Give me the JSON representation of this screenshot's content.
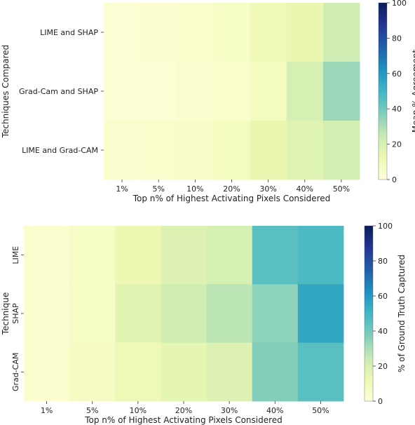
{
  "chart_data": [
    {
      "type": "heatmap",
      "x_categories": [
        "1%",
        "5%",
        "10%",
        "20%",
        "30%",
        "40%",
        "50%"
      ],
      "y_categories": [
        "LIME and SHAP",
        "Grad-Cam and SHAP",
        "LIME and Grad-CAM"
      ],
      "values": [
        [
          2,
          3,
          4,
          6,
          10,
          13,
          22
        ],
        [
          1,
          2,
          3,
          4,
          8,
          20,
          33
        ],
        [
          3,
          4,
          5,
          8,
          13,
          17,
          21
        ]
      ],
      "xlabel": "Top n% of Highest Activating Pixels Considered",
      "ylabel": "Techniques Compared",
      "colorbar": {
        "label": "Mean % Agreement",
        "range": [
          0,
          100
        ],
        "ticks": [
          "0",
          "20",
          "40",
          "60",
          "80",
          "100"
        ]
      },
      "colormap": "YlGnBu"
    },
    {
      "type": "heatmap",
      "x_categories": [
        "1%",
        "5%",
        "10%",
        "20%",
        "30%",
        "40%",
        "50%"
      ],
      "y_categories": [
        "LIME",
        "SHAP",
        "Grad-CAM"
      ],
      "values": [
        [
          3,
          6,
          12,
          18,
          20,
          45,
          48
        ],
        [
          3,
          6,
          16,
          22,
          27,
          35,
          55
        ],
        [
          3,
          7,
          11,
          15,
          18,
          37,
          45
        ]
      ],
      "xlabel": "Top n% of Highest Activating Pixels Considered",
      "ylabel": "Technique",
      "colorbar": {
        "label": "% of Ground Truth Captured",
        "range": [
          0,
          100
        ],
        "ticks": [
          "0",
          "20",
          "40",
          "60",
          "80",
          "100"
        ]
      },
      "colormap": "YlGnBu"
    }
  ]
}
